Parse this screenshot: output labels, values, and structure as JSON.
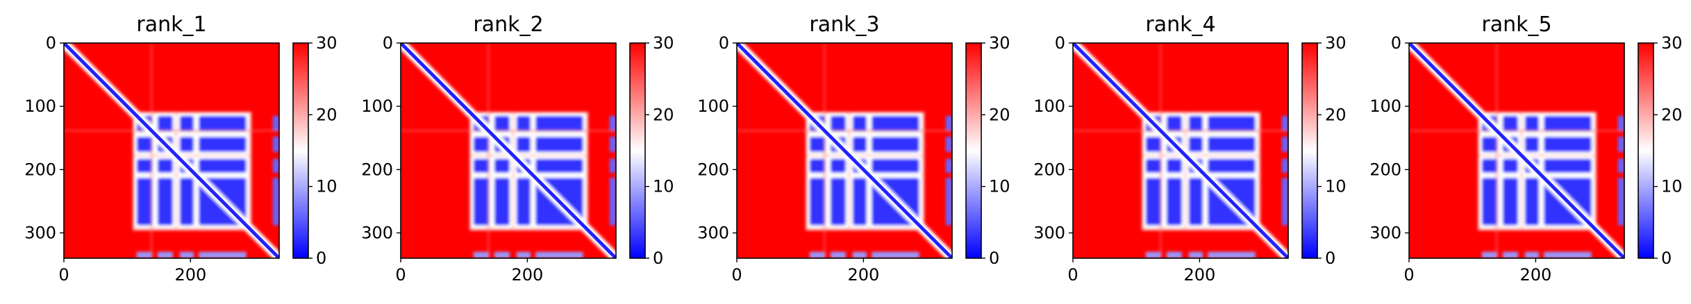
{
  "chart_data": [
    {
      "type": "heatmap",
      "title": "rank_1",
      "matrix_size": 340,
      "x_ticks": [
        0,
        200
      ],
      "y_ticks": [
        0,
        100,
        200,
        300
      ],
      "colorbar": {
        "min": 0,
        "max": 30,
        "ticks": [
          0,
          10,
          20,
          30
        ],
        "colormap": "bwr",
        "low_color": "#0000ff",
        "mid_color": "#ffffff",
        "high_color": "#ff0000"
      },
      "blocks": {
        "range": [
          115,
          290
        ],
        "bands": [
          [
            115,
            140
          ],
          [
            148,
            172
          ],
          [
            183,
            205
          ],
          [
            213,
            288
          ]
        ],
        "secondary_range": [
          330,
          340
        ]
      },
      "diagonal_value": 2
    },
    {
      "type": "heatmap",
      "title": "rank_2",
      "matrix_size": 340,
      "x_ticks": [
        0,
        200
      ],
      "y_ticks": [
        0,
        100,
        200,
        300
      ],
      "colorbar": {
        "min": 0,
        "max": 30,
        "ticks": [
          0,
          10,
          20,
          30
        ],
        "colormap": "bwr",
        "low_color": "#0000ff",
        "mid_color": "#ffffff",
        "high_color": "#ff0000"
      },
      "blocks": {
        "range": [
          115,
          290
        ],
        "bands": [
          [
            115,
            140
          ],
          [
            148,
            172
          ],
          [
            183,
            205
          ],
          [
            213,
            288
          ]
        ],
        "secondary_range": [
          330,
          340
        ]
      },
      "diagonal_value": 2
    },
    {
      "type": "heatmap",
      "title": "rank_3",
      "matrix_size": 340,
      "x_ticks": [
        0,
        200
      ],
      "y_ticks": [
        0,
        100,
        200,
        300
      ],
      "colorbar": {
        "min": 0,
        "max": 30,
        "ticks": [
          0,
          10,
          20,
          30
        ],
        "colormap": "bwr",
        "low_color": "#0000ff",
        "mid_color": "#ffffff",
        "high_color": "#ff0000"
      },
      "blocks": {
        "range": [
          115,
          290
        ],
        "bands": [
          [
            115,
            140
          ],
          [
            148,
            172
          ],
          [
            183,
            205
          ],
          [
            213,
            288
          ]
        ],
        "secondary_range": [
          330,
          340
        ]
      },
      "diagonal_value": 2
    },
    {
      "type": "heatmap",
      "title": "rank_4",
      "matrix_size": 340,
      "x_ticks": [
        0,
        200
      ],
      "y_ticks": [
        0,
        100,
        200,
        300
      ],
      "colorbar": {
        "min": 0,
        "max": 30,
        "ticks": [
          0,
          10,
          20,
          30
        ],
        "colormap": "bwr",
        "low_color": "#0000ff",
        "mid_color": "#ffffff",
        "high_color": "#ff0000"
      },
      "blocks": {
        "range": [
          115,
          290
        ],
        "bands": [
          [
            115,
            140
          ],
          [
            148,
            172
          ],
          [
            183,
            205
          ],
          [
            213,
            288
          ]
        ],
        "secondary_range": [
          330,
          340
        ]
      },
      "diagonal_value": 2
    },
    {
      "type": "heatmap",
      "title": "rank_5",
      "matrix_size": 340,
      "x_ticks": [
        0,
        200
      ],
      "y_ticks": [
        0,
        100,
        200,
        300
      ],
      "colorbar": {
        "min": 0,
        "max": 30,
        "ticks": [
          0,
          10,
          20,
          30
        ],
        "colormap": "bwr",
        "low_color": "#0000ff",
        "mid_color": "#ffffff",
        "high_color": "#ff0000"
      },
      "blocks": {
        "range": [
          115,
          290
        ],
        "bands": [
          [
            115,
            140
          ],
          [
            148,
            172
          ],
          [
            183,
            205
          ],
          [
            213,
            288
          ]
        ],
        "secondary_range": [
          330,
          340
        ]
      },
      "diagonal_value": 2
    }
  ]
}
